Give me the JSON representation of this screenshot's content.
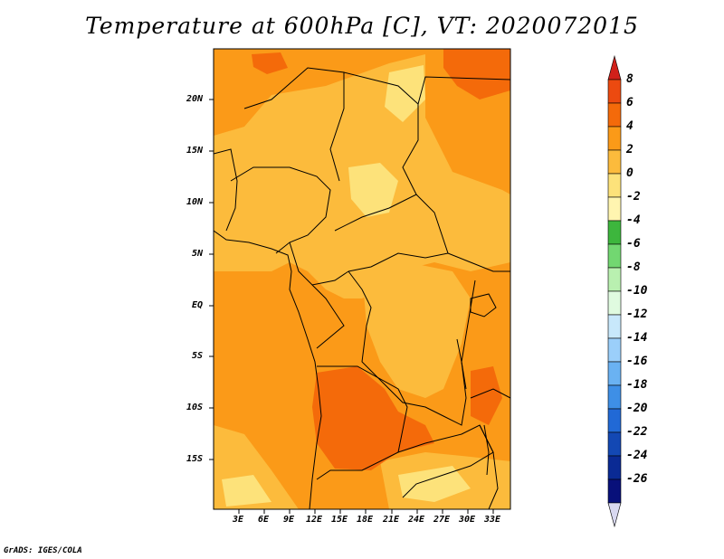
{
  "title": "Temperature at 600hPa [C], VT: 2020072015",
  "credit": "GrADS: IGES/COLA",
  "map": {
    "lat_labels": [
      "20N",
      "15N",
      "10N",
      "5N",
      "EQ",
      "5S",
      "10S",
      "15S"
    ],
    "lon_labels": [
      "3E",
      "6E",
      "9E",
      "12E",
      "15E",
      "18E",
      "21E",
      "24E",
      "27E",
      "30E",
      "33E"
    ]
  },
  "colorbar": {
    "labels": [
      "8",
      "6",
      "4",
      "2",
      "0",
      "-2",
      "-4",
      "-6",
      "-8",
      "-10",
      "-12",
      "-14",
      "-16",
      "-18",
      "-20",
      "-22",
      "-24",
      "-26"
    ],
    "colors": [
      "#d0201a",
      "#ec4a10",
      "#f46a0a",
      "#fb9a18",
      "#fcbb3c",
      "#fde27a",
      "#fff5b0",
      "#3db63d",
      "#72d771",
      "#b9f0b0",
      "#e0fbe0",
      "#c8e8fb",
      "#9bcffa",
      "#6ab2f2",
      "#3e8fe6",
      "#2169d6",
      "#1348b4",
      "#0a2a94",
      "#08107a",
      "#d8d8f0"
    ]
  },
  "colors": {
    "deep_orange": "#f46a0a",
    "orange": "#fb9a18",
    "light_orange": "#fcbb3c",
    "yellow": "#fde27a"
  }
}
